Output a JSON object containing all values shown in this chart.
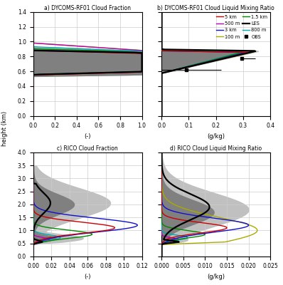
{
  "titles": [
    "a) DYCOMS-RF01 Cloud Fraction",
    "b) DYCOMS-RF01 Cloud Liquid Mixing Ratio",
    "c) RICO Cloud Fraction",
    "d) RICO Cloud Liquid Mixing Ratio"
  ],
  "xlabels": [
    "(-)",
    "(g/kg)",
    "(-)",
    "(g/kg)"
  ],
  "ylabel": "height (km)",
  "colors": {
    "5km": "#cc0000",
    "3km": "#1111cc",
    "1.5km": "#008800",
    "800m": "#00aaaa",
    "500m": "#bb00bb",
    "100m": "#aaaa00",
    "LES": "#000000"
  },
  "dycoms_ylim": [
    0.0,
    1.4
  ],
  "rico_ylim": [
    0.0,
    4.0
  ],
  "dycoms_cf_xlim": [
    0.0,
    1.0
  ],
  "dycoms_ql_xlim": [
    0.0,
    0.4
  ],
  "rico_cf_xlim": [
    0.0,
    0.12
  ],
  "rico_ql_xlim": [
    0.0,
    0.025
  ],
  "gray_inner": "#808080",
  "gray_outer": "#c0c0c0"
}
